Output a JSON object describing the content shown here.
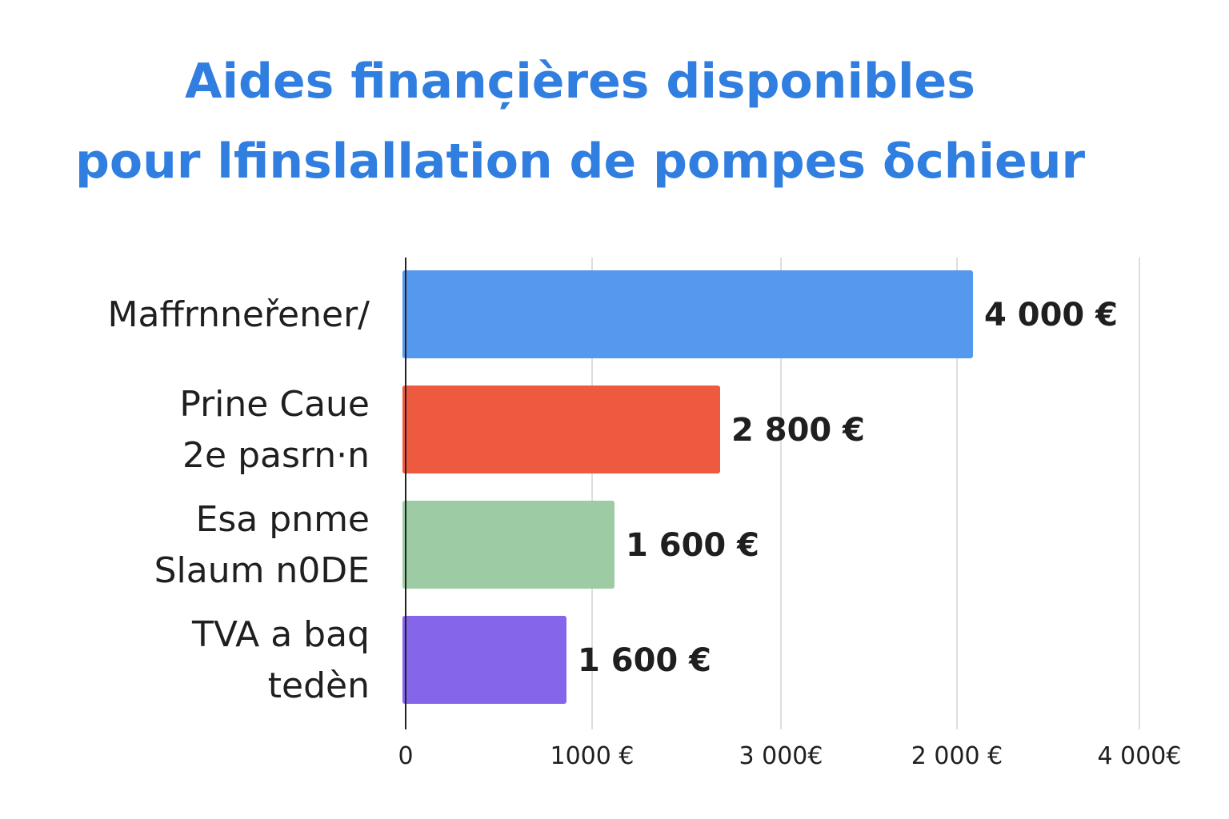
{
  "chart_data": {
    "type": "bar",
    "orientation": "horizontal",
    "title_lines": [
      "Aides financ̦ières disponibles",
      "pour lfinslallation de pompes δchieur"
    ],
    "categories": [
      [
        "Maffrnneřener/"
      ],
      [
        "Prine  Caue",
        "2e pasrn·n"
      ],
      [
        "Esa pnme",
        "Slaum n0DE"
      ],
      [
        "TVA a baq",
        "tedèn"
      ]
    ],
    "values": [
      4000,
      2800,
      1600,
      1600
    ],
    "value_labels": [
      "4 000 €",
      "2 800 €",
      "1 600 €",
      "1 600 €"
    ],
    "colors": [
      "#5599ee",
      "#ee5a3f",
      "#9dcba4",
      "#8566ea"
    ],
    "x_ticks": [
      "0",
      "1000 €",
      "3 000€",
      "2 000 €",
      "4 000€"
    ],
    "grid": true,
    "legend": "none"
  }
}
